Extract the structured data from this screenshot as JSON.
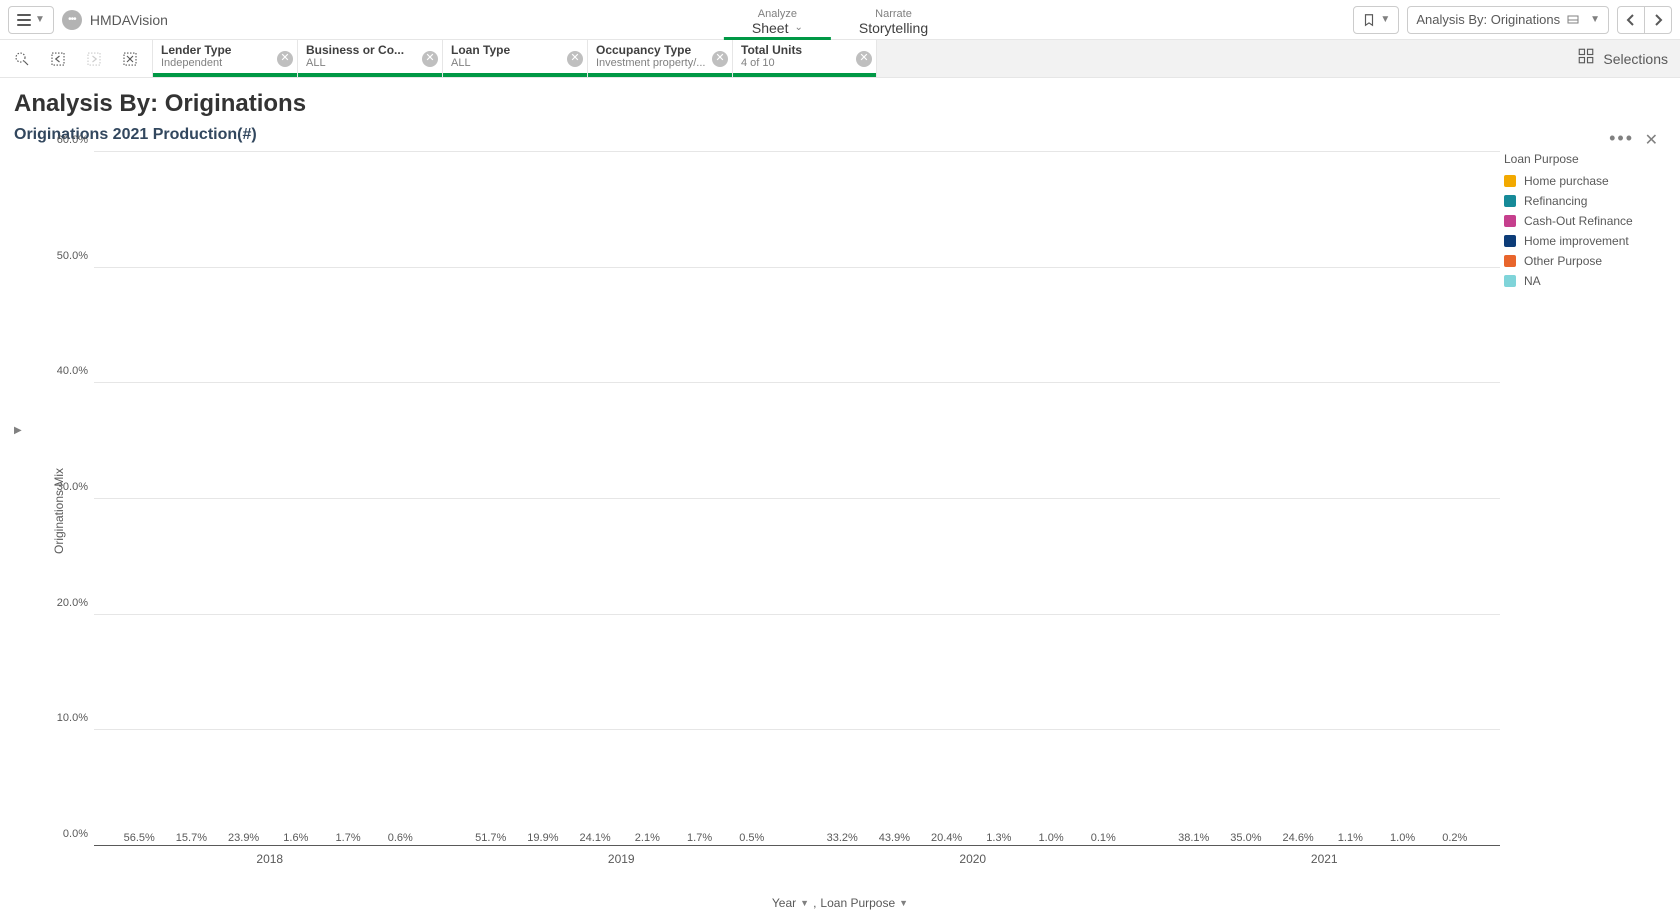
{
  "app": {
    "name": "HMDAVision",
    "center_tabs": [
      {
        "line1": "Analyze",
        "line2": "Sheet",
        "active": true,
        "has_chevron": true
      },
      {
        "line1": "Narrate",
        "line2": "Storytelling",
        "active": false,
        "has_chevron": false
      }
    ],
    "sheet_dropdown_label": "Analysis By: Originations"
  },
  "selection_bar": {
    "chips": [
      {
        "title": "Lender Type",
        "subtitle": "Independent"
      },
      {
        "title": "Business or Co...",
        "subtitle": "ALL"
      },
      {
        "title": "Loan Type",
        "subtitle": "ALL"
      },
      {
        "title": "Occupancy Type",
        "subtitle": "Investment property/..."
      },
      {
        "title": "Total Units",
        "subtitle": "4 of 10"
      }
    ],
    "right_label": "Selections"
  },
  "sheet": {
    "title": "Analysis By: Originations"
  },
  "chart": {
    "type": "bar-grouped",
    "title": "Originations 2021 Production(#)",
    "y_label": "Originations Mix",
    "x_dim_labels": [
      "Year",
      "Loan Purpose"
    ],
    "ylim": [
      0,
      60
    ],
    "ytick_step": 10,
    "tick_suffix": ".0%",
    "label_suffix": "%",
    "background_color": "#ffffff",
    "grid_color": "#e6e6e6",
    "axis_text_color": "#595959",
    "series": [
      {
        "name": "Home purchase",
        "color": "#f2a900"
      },
      {
        "name": "Refinancing",
        "color": "#168a98"
      },
      {
        "name": "Cash-Out Refinance",
        "color": "#c53f8d"
      },
      {
        "name": "Home improvement",
        "color": "#0d3c78"
      },
      {
        "name": "Other Purpose",
        "color": "#e8652c"
      },
      {
        "name": "NA",
        "color": "#7fd4d9"
      }
    ],
    "legend_title": "Loan Purpose",
    "categories": [
      "2018",
      "2019",
      "2020",
      "2021"
    ],
    "data": [
      [
        56.5,
        15.7,
        23.9,
        1.6,
        1.7,
        0.6
      ],
      [
        51.7,
        19.9,
        24.1,
        2.1,
        1.7,
        0.5
      ],
      [
        33.2,
        43.9,
        20.4,
        1.3,
        1.0,
        0.1
      ],
      [
        38.1,
        35.0,
        24.6,
        1.1,
        1.0,
        0.2
      ]
    ]
  }
}
